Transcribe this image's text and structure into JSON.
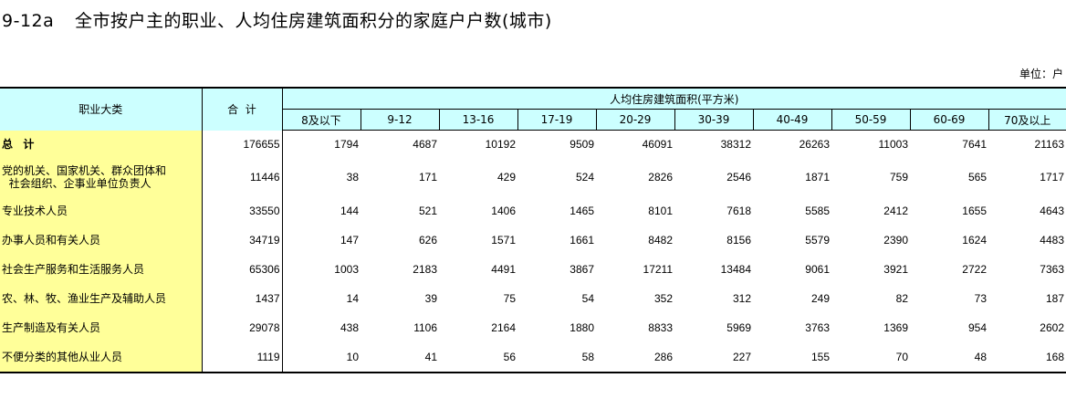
{
  "page": {
    "title_code": "9-12a",
    "title_text": "全市按户主的职业、人均住房建筑面积分的家庭户户数(城市)",
    "unit_label": "单位：户"
  },
  "table": {
    "header_occupation": "职业大类",
    "header_total": "合  计",
    "header_group": "人均住房建筑面积(平方米)",
    "ranges": [
      "8及以下",
      "9-12",
      "13-16",
      "17-19",
      "20-29",
      "30-39",
      "40-49",
      "50-59",
      "60-69",
      "70及以上"
    ],
    "rows": [
      {
        "label": "总  计",
        "values": [
          "176655",
          "1794",
          "4687",
          "10192",
          "9509",
          "46091",
          "38312",
          "26263",
          "11003",
          "7641",
          "21163"
        ]
      },
      {
        "label": "党的机关、国家机关、群众团体和\n  社会组织、企事业单位负责人",
        "values": [
          "11446",
          "38",
          "171",
          "429",
          "524",
          "2826",
          "2546",
          "1871",
          "759",
          "565",
          "1717"
        ]
      },
      {
        "label": "专业技术人员",
        "values": [
          "33550",
          "144",
          "521",
          "1406",
          "1465",
          "8101",
          "7618",
          "5585",
          "2412",
          "1655",
          "4643"
        ]
      },
      {
        "label": "办事人员和有关人员",
        "values": [
          "34719",
          "147",
          "626",
          "1571",
          "1661",
          "8482",
          "8156",
          "5579",
          "2390",
          "1624",
          "4483"
        ]
      },
      {
        "label": "社会生产服务和生活服务人员",
        "values": [
          "65306",
          "1003",
          "2183",
          "4491",
          "3867",
          "17211",
          "13484",
          "9061",
          "3921",
          "2722",
          "7363"
        ]
      },
      {
        "label": "农、林、牧、渔业生产及辅助人员",
        "values": [
          "1437",
          "14",
          "39",
          "75",
          "54",
          "352",
          "312",
          "249",
          "82",
          "73",
          "187"
        ]
      },
      {
        "label": "生产制造及有关人员",
        "values": [
          "29078",
          "438",
          "1106",
          "2164",
          "1880",
          "8833",
          "5969",
          "3763",
          "1369",
          "954",
          "2602"
        ]
      },
      {
        "label": "不便分类的其他从业人员",
        "values": [
          "1119",
          "10",
          "41",
          "56",
          "58",
          "286",
          "227",
          "155",
          "70",
          "48",
          "168"
        ]
      }
    ]
  }
}
